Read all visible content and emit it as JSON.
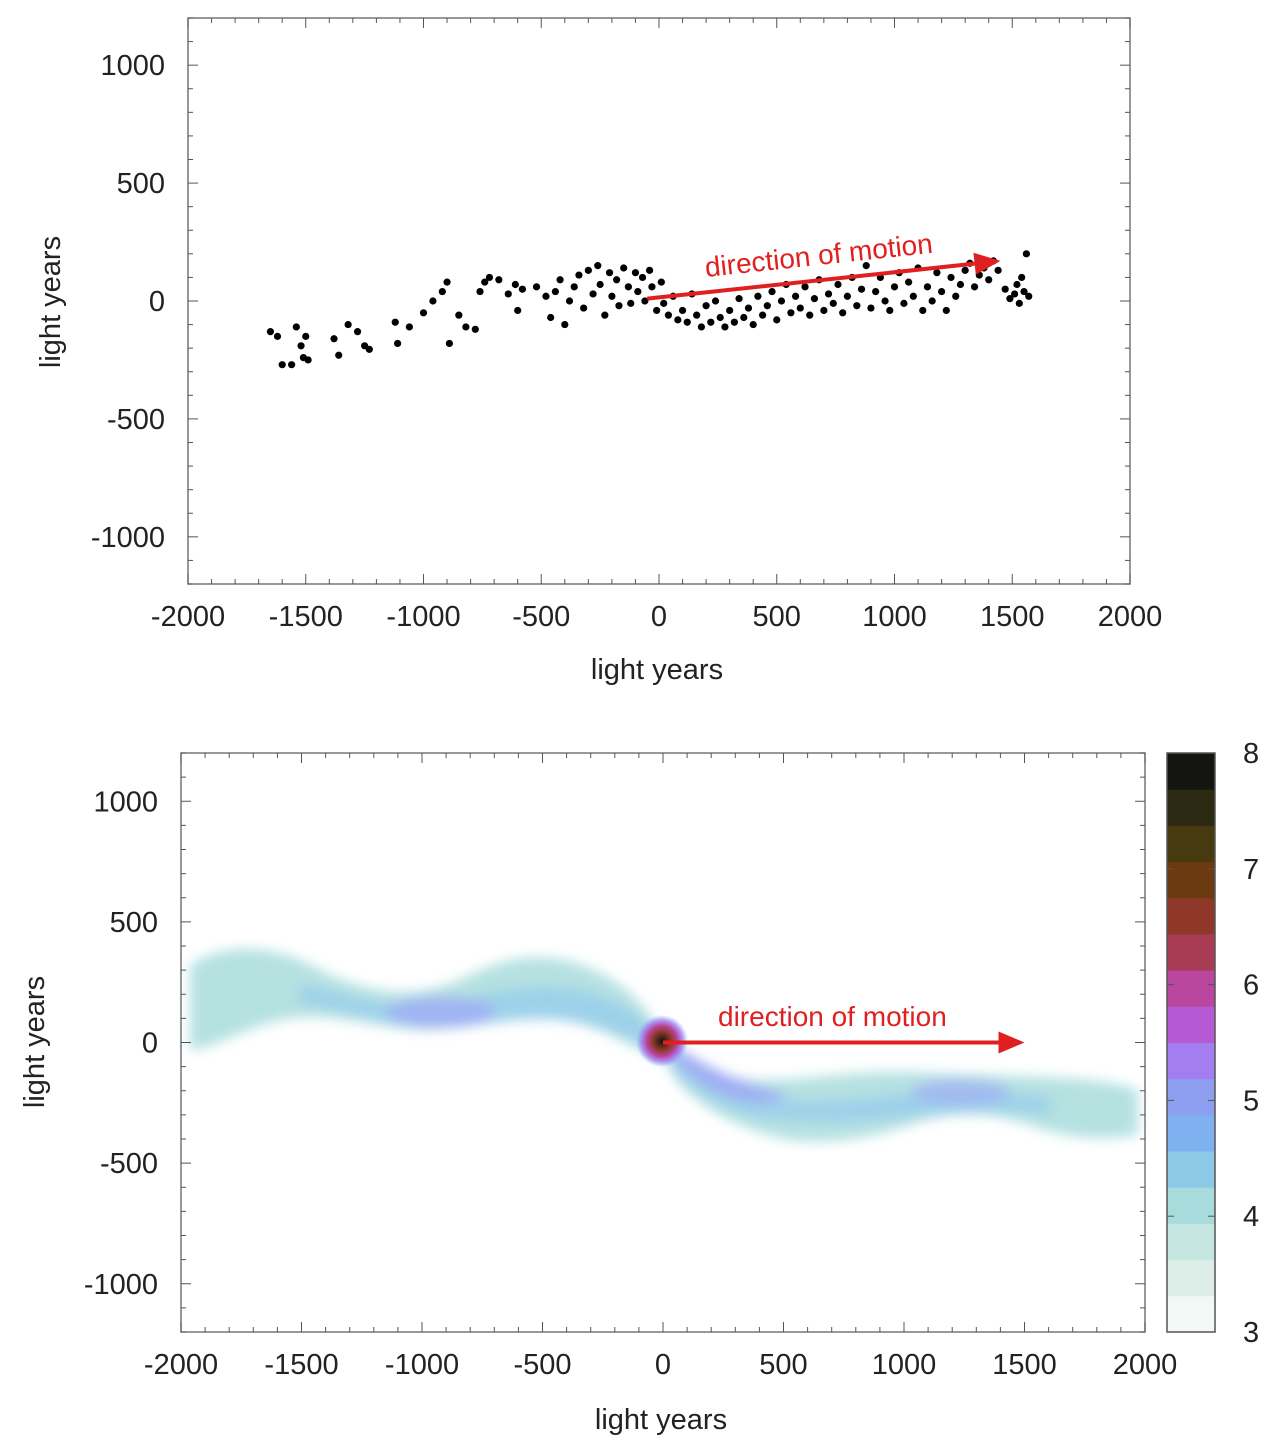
{
  "chart_data": [
    {
      "type": "scatter",
      "xlabel": "light years",
      "ylabel": "light years",
      "xlim": [
        -2000,
        2000
      ],
      "ylim": [
        -1200,
        1200
      ],
      "xticks": [
        -2000,
        -1500,
        -1000,
        -500,
        0,
        500,
        1000,
        1500,
        2000
      ],
      "yticks": [
        1000,
        500,
        0,
        -500,
        -1000
      ],
      "marker_color": "#000000",
      "points": [
        [
          -1650,
          -130
        ],
        [
          -1620,
          -150
        ],
        [
          -1600,
          -270
        ],
        [
          -1560,
          -270
        ],
        [
          -1540,
          -110
        ],
        [
          -1520,
          -190
        ],
        [
          -1510,
          -240
        ],
        [
          -1500,
          -150
        ],
        [
          -1490,
          -250
        ],
        [
          -1380,
          -160
        ],
        [
          -1360,
          -230
        ],
        [
          -1320,
          -100
        ],
        [
          -1280,
          -130
        ],
        [
          -1250,
          -190
        ],
        [
          -1230,
          -205
        ],
        [
          -1120,
          -90
        ],
        [
          -1110,
          -180
        ],
        [
          -1060,
          -110
        ],
        [
          -1000,
          -50
        ],
        [
          -960,
          0
        ],
        [
          -920,
          40
        ],
        [
          -900,
          80
        ],
        [
          -890,
          -180
        ],
        [
          -850,
          -60
        ],
        [
          -820,
          -110
        ],
        [
          -780,
          -120
        ],
        [
          -760,
          40
        ],
        [
          -740,
          80
        ],
        [
          -720,
          100
        ],
        [
          -680,
          90
        ],
        [
          -640,
          30
        ],
        [
          -610,
          70
        ],
        [
          -600,
          -40
        ],
        [
          -580,
          50
        ],
        [
          -520,
          60
        ],
        [
          -480,
          20
        ],
        [
          -460,
          -70
        ],
        [
          -440,
          40
        ],
        [
          -420,
          90
        ],
        [
          -400,
          -100
        ],
        [
          -380,
          0
        ],
        [
          -360,
          60
        ],
        [
          -340,
          110
        ],
        [
          -320,
          -30
        ],
        [
          -300,
          130
        ],
        [
          -280,
          30
        ],
        [
          -260,
          150
        ],
        [
          -250,
          70
        ],
        [
          -230,
          -60
        ],
        [
          -210,
          120
        ],
        [
          -200,
          20
        ],
        [
          -180,
          90
        ],
        [
          -170,
          -20
        ],
        [
          -150,
          140
        ],
        [
          -130,
          60
        ],
        [
          -120,
          -10
        ],
        [
          -100,
          120
        ],
        [
          -90,
          40
        ],
        [
          -70,
          100
        ],
        [
          -60,
          0
        ],
        [
          -40,
          130
        ],
        [
          -30,
          60
        ],
        [
          -10,
          -40
        ],
        [
          10,
          80
        ],
        [
          20,
          -10
        ],
        [
          40,
          -60
        ],
        [
          60,
          20
        ],
        [
          80,
          -80
        ],
        [
          100,
          -40
        ],
        [
          120,
          -90
        ],
        [
          140,
          30
        ],
        [
          160,
          -60
        ],
        [
          180,
          -110
        ],
        [
          200,
          -20
        ],
        [
          220,
          -90
        ],
        [
          240,
          0
        ],
        [
          260,
          -70
        ],
        [
          280,
          -110
        ],
        [
          300,
          -40
        ],
        [
          320,
          -90
        ],
        [
          340,
          10
        ],
        [
          360,
          -70
        ],
        [
          380,
          -30
        ],
        [
          400,
          -100
        ],
        [
          420,
          20
        ],
        [
          440,
          -60
        ],
        [
          460,
          -20
        ],
        [
          480,
          40
        ],
        [
          500,
          -80
        ],
        [
          520,
          0
        ],
        [
          540,
          70
        ],
        [
          560,
          -50
        ],
        [
          580,
          20
        ],
        [
          600,
          -30
        ],
        [
          620,
          60
        ],
        [
          640,
          -60
        ],
        [
          660,
          10
        ],
        [
          680,
          90
        ],
        [
          700,
          -40
        ],
        [
          720,
          30
        ],
        [
          740,
          -10
        ],
        [
          760,
          70
        ],
        [
          780,
          -50
        ],
        [
          800,
          20
        ],
        [
          820,
          100
        ],
        [
          840,
          -20
        ],
        [
          860,
          50
        ],
        [
          880,
          150
        ],
        [
          900,
          -30
        ],
        [
          920,
          40
        ],
        [
          940,
          100
        ],
        [
          960,
          0
        ],
        [
          980,
          -40
        ],
        [
          1000,
          60
        ],
        [
          1020,
          120
        ],
        [
          1040,
          -10
        ],
        [
          1060,
          80
        ],
        [
          1080,
          20
        ],
        [
          1100,
          140
        ],
        [
          1120,
          -40
        ],
        [
          1140,
          60
        ],
        [
          1160,
          0
        ],
        [
          1180,
          120
        ],
        [
          1200,
          40
        ],
        [
          1220,
          -40
        ],
        [
          1240,
          100
        ],
        [
          1260,
          20
        ],
        [
          1280,
          70
        ],
        [
          1300,
          130
        ],
        [
          1320,
          160
        ],
        [
          1340,
          60
        ],
        [
          1360,
          110
        ],
        [
          1380,
          140
        ],
        [
          1400,
          90
        ],
        [
          1420,
          170
        ],
        [
          1440,
          130
        ],
        [
          1470,
          50
        ],
        [
          1490,
          10
        ],
        [
          1510,
          30
        ],
        [
          1520,
          70
        ],
        [
          1530,
          -10
        ],
        [
          1540,
          100
        ],
        [
          1550,
          40
        ],
        [
          1560,
          200
        ],
        [
          1570,
          20
        ]
      ],
      "annotation": {
        "text": "direction of motion",
        "color": "#e02020",
        "arrow_from": [
          -50,
          10
        ],
        "arrow_to": [
          1450,
          170
        ]
      }
    },
    {
      "type": "heatmap",
      "xlabel": "light years",
      "ylabel": "light years",
      "xlim": [
        -2000,
        2000
      ],
      "ylim": [
        -1200,
        1200
      ],
      "xticks": [
        -2000,
        -1500,
        -1000,
        -500,
        0,
        500,
        1000,
        1500,
        2000
      ],
      "yticks": [
        1000,
        500,
        0,
        -500,
        -1000
      ],
      "colorbar": {
        "min": 3,
        "max": 8,
        "ticks": [
          3,
          4,
          5,
          6,
          7,
          8
        ],
        "colors": [
          "#f2f8f6",
          "#ddeee8",
          "#c5e6e1",
          "#a8dcdc",
          "#8cc9e6",
          "#7fb0f0",
          "#8e9ff2",
          "#a27ef0",
          "#b55ad2",
          "#b9469f",
          "#a83c55",
          "#8f3728",
          "#6b3a10",
          "#473a10",
          "#2d2a14",
          "#141410"
        ]
      },
      "annotation": {
        "text": "direction of motion",
        "color": "#e02020",
        "arrow_from": [
          0,
          0
        ],
        "arrow_to": [
          1500,
          0
        ]
      }
    }
  ]
}
